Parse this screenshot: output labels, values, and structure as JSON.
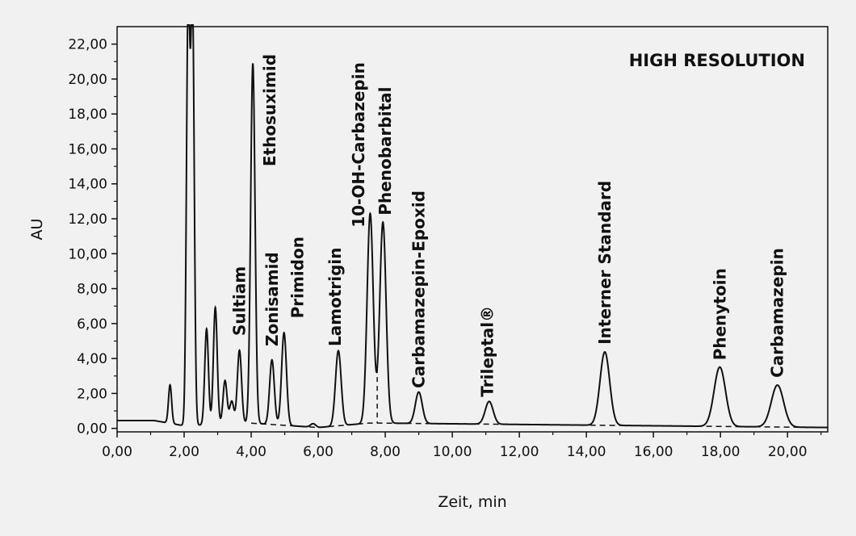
{
  "chart_data": {
    "type": "line",
    "title": "",
    "annotation": "HIGH RESOLUTION",
    "xlabel": "Zeit, min",
    "ylabel": "AU",
    "xlim": [
      0,
      21.2
    ],
    "ylim": [
      -0.2,
      23
    ],
    "x_ticks": [
      0,
      2,
      4,
      6,
      8,
      10,
      12,
      14,
      16,
      18,
      20
    ],
    "x_tick_labels": [
      "0,00",
      "2,00",
      "4,00",
      "6,00",
      "8,00",
      "10,00",
      "12,00",
      "14,00",
      "16,00",
      "18,00",
      "20,00"
    ],
    "y_ticks": [
      0,
      2,
      4,
      6,
      8,
      10,
      12,
      14,
      16,
      18,
      20,
      22
    ],
    "y_tick_labels": [
      "0,00",
      "2,00",
      "4,00",
      "6,00",
      "8,00",
      "10,00",
      "12,00",
      "14,00",
      "16,00",
      "18,00",
      "20,00",
      "22,00"
    ],
    "grid": false,
    "legend": "none",
    "baseline": [
      [
        4.0,
        0.3
      ],
      [
        6.0,
        0.05
      ],
      [
        7.5,
        0.3
      ],
      [
        8.0,
        0.3
      ],
      [
        21.2,
        0.05
      ]
    ],
    "peaks": [
      {
        "name": "",
        "rt": 1.58,
        "height": 2.2
      },
      {
        "name": "",
        "rt": 2.12,
        "height": 24.0
      },
      {
        "name": "",
        "rt": 2.25,
        "height": 24.0
      },
      {
        "name": "",
        "rt": 2.67,
        "height": 5.5
      },
      {
        "name": "",
        "rt": 2.93,
        "height": 6.7
      },
      {
        "name": "",
        "rt": 3.22,
        "height": 2.5
      },
      {
        "name": "",
        "rt": 3.42,
        "height": 1.3
      },
      {
        "name": "Sultiam",
        "rt": 3.65,
        "height": 4.2
      },
      {
        "name": "Ethosuximid",
        "rt": 4.05,
        "height": 20.6
      },
      {
        "name": "Zonisamid",
        "rt": 4.62,
        "height": 3.7
      },
      {
        "name": "Primidon",
        "rt": 4.98,
        "height": 5.3
      },
      {
        "name": "",
        "rt": 5.85,
        "height": 0.2
      },
      {
        "name": "Lamotrigin",
        "rt": 6.6,
        "height": 4.3
      },
      {
        "name": "10-OH-Carbazepin",
        "rt": 7.55,
        "height": 12.0
      },
      {
        "name": "Phenobarbital",
        "rt": 7.93,
        "height": 11.5
      },
      {
        "name": "Carbamazepin-Epoxid",
        "rt": 9.0,
        "height": 1.8
      },
      {
        "name": "Trileptal®",
        "rt": 11.1,
        "height": 1.3
      },
      {
        "name": "Interner Standard",
        "rt": 14.55,
        "height": 4.2
      },
      {
        "name": "Phenytoin",
        "rt": 17.98,
        "height": 3.4
      },
      {
        "name": "Carbamazepin",
        "rt": 19.7,
        "height": 2.4
      }
    ]
  }
}
